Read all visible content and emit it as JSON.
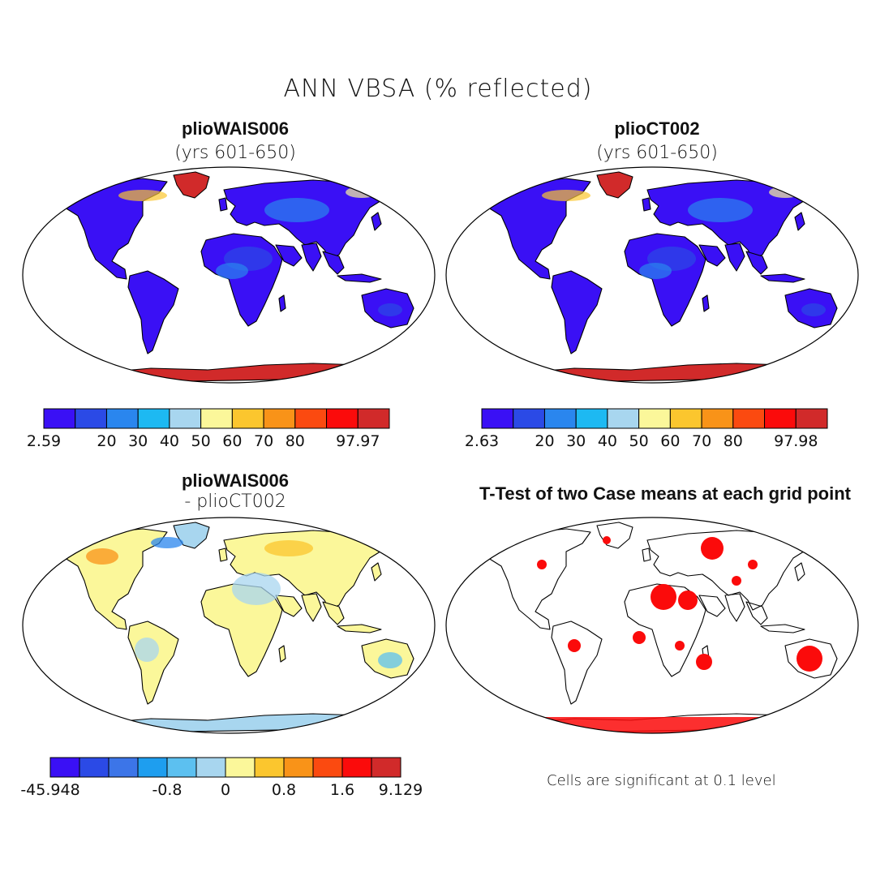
{
  "figure": {
    "title": "ANN VBSA (% reflected)",
    "panels": [
      {
        "id": "wais",
        "title": "plioWAIS006",
        "subtitle": "(yrs 601-650)",
        "colorbar": {
          "colors": [
            "#3a10f5",
            "#2b4ae6",
            "#2a86ee",
            "#1db9f2",
            "#a8d6ef",
            "#fbf79a",
            "#fbc62e",
            "#f99318",
            "#fb4a10",
            "#fb0b0b",
            "#d12a2a"
          ],
          "labels": [
            "2.59",
            "20",
            "30",
            "40",
            "50",
            "60",
            "70",
            "80",
            "97.97"
          ],
          "label_boundaries": [
            0,
            2,
            3,
            4,
            5,
            6,
            7,
            8,
            10
          ]
        }
      },
      {
        "id": "ct",
        "title": "plioCT002",
        "subtitle": "(yrs 601-650)",
        "colorbar": {
          "colors": [
            "#3a10f5",
            "#2b4ae6",
            "#2a86ee",
            "#1db9f2",
            "#a8d6ef",
            "#fbf79a",
            "#fbc62e",
            "#f99318",
            "#fb4a10",
            "#fb0b0b",
            "#d12a2a"
          ],
          "labels": [
            "2.63",
            "20",
            "30",
            "40",
            "50",
            "60",
            "70",
            "80",
            "97.98"
          ],
          "label_boundaries": [
            0,
            2,
            3,
            4,
            5,
            6,
            7,
            8,
            10
          ]
        }
      },
      {
        "id": "diff",
        "title": "plioWAIS006",
        "subtitle": "- plioCT002",
        "colorbar": {
          "colors": [
            "#3a10f5",
            "#2b4ae6",
            "#3c75e8",
            "#1e9eef",
            "#5cc0f0",
            "#a8d6ef",
            "#fbf79a",
            "#fbc62e",
            "#f99318",
            "#fb4a10",
            "#fb0b0b",
            "#d12a2a"
          ],
          "labels": [
            "-45.948",
            "-0.8",
            "0",
            "0.8",
            "1.6",
            "9.129"
          ],
          "label_boundaries": [
            0,
            4,
            6,
            8,
            10,
            12
          ]
        }
      },
      {
        "id": "ttest",
        "title": "T-Test of two Case means at each grid point",
        "note": "Cells are significant at 0.1 level"
      }
    ]
  },
  "colors": {
    "land_blue": "#3a10f5",
    "ice_red": "#d12a2a",
    "sig_red": "#fb0b0b",
    "diff_yellow": "#fbf79a",
    "diff_lightblue": "#a8d6ef"
  }
}
